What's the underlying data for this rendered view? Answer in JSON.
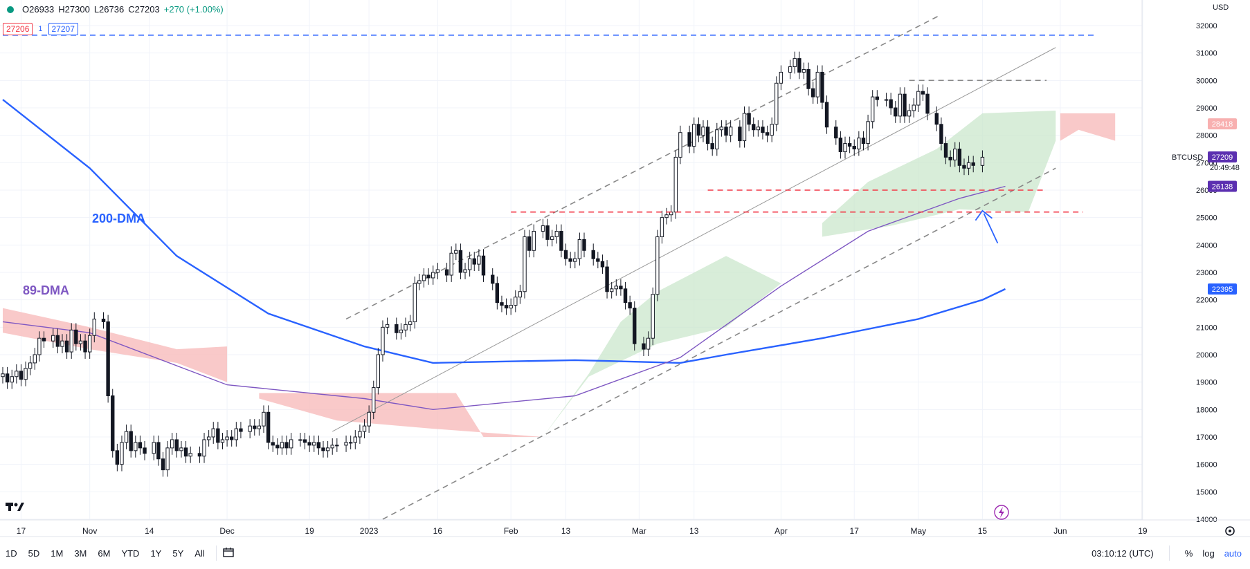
{
  "header": {
    "open": "O26933",
    "high": "H27300",
    "low": "L26736",
    "close": "C27203",
    "change": "+270 (+1.00%)",
    "sell_price": "27206",
    "spread": "1",
    "buy_price": "27207"
  },
  "axis": {
    "currency": "USD",
    "symbol": "BTCUSD",
    "last_price": "27203",
    "countdown": "20:49:48",
    "time_display": "03:10:12 (UTC)"
  },
  "bottom_bar": {
    "ranges": [
      "1D",
      "5D",
      "1M",
      "3M",
      "6M",
      "YTD",
      "1Y",
      "5Y",
      "All"
    ],
    "percent_label": "%",
    "log_label": "log",
    "auto_label": "auto"
  },
  "colors": {
    "up": "#131722",
    "down": "#131722",
    "dma200": "#2962ff",
    "dma89": "#7e57c2",
    "cloud_bull": "#c8e6c9",
    "cloud_bear": "#f8bbbb",
    "support": "#f23645",
    "resistance": "#2962ff",
    "channel": "#888888",
    "arrow": "#2962ff"
  },
  "chart_data": {
    "type": "candlestick",
    "title": "",
    "xlabel": "",
    "ylabel": "",
    "ylim": [
      14000,
      32000
    ],
    "grid": true,
    "x_tick_labels": [
      "17",
      "Nov",
      "14",
      "Dec",
      "19",
      "2023",
      "16",
      "Feb",
      "13",
      "Mar",
      "13",
      "Apr",
      "17",
      "May",
      "15",
      "Jun",
      "19"
    ],
    "y_tick_labels": [
      "32000",
      "31000",
      "30000",
      "29000",
      "28000",
      "27000",
      "26000",
      "25000",
      "24000",
      "23000",
      "22000",
      "21000",
      "20000",
      "19000",
      "18000",
      "17000",
      "16000",
      "15000",
      "14000"
    ],
    "x_start": "2022-10-13",
    "x_end": "2023-06-24",
    "candle_closes": [
      19300,
      19000,
      19200,
      19400,
      19100,
      19500,
      19700,
      20000,
      20600,
      20500,
      20700,
      20300,
      20500,
      20100,
      20900,
      20400,
      20500,
      20100,
      20700,
      21300,
      21200,
      18500,
      16500,
      16000,
      16800,
      17200,
      16500,
      16800,
      16600,
      16400,
      16800,
      16200,
      15800,
      16600,
      16900,
      16500,
      16600,
      16300,
      16400,
      16300,
      16900,
      17000,
      17300,
      16800,
      16900,
      17000,
      16900,
      17300,
      17200,
      17400,
      17300,
      17400,
      17900,
      16800,
      16700,
      16600,
      16800,
      16600,
      16900,
      16900,
      16800,
      16700,
      16800,
      16600,
      16500,
      16600,
      16700,
      16700,
      16800,
      16800,
      17000,
      17200,
      17400,
      17900,
      18800,
      20000,
      21000,
      21100,
      20800,
      20900,
      21100,
      21200,
      22600,
      22700,
      22900,
      22800,
      23000,
      23100,
      22900,
      23700,
      23800,
      23000,
      23100,
      23500,
      23300,
      23600,
      22900,
      22600,
      21900,
      21800,
      21700,
      21800,
      22100,
      22300,
      24300,
      23800,
      24500,
      24700,
      24200,
      24300,
      24500,
      23800,
      23500,
      23400,
      23500,
      24200,
      23800,
      23500,
      23400,
      23200,
      22300,
      22400,
      22500,
      22400,
      21900,
      21700,
      20400,
      20200,
      20600,
      22200,
      24300,
      25000,
      25100,
      25200,
      27200,
      28100,
      27600,
      28400,
      28000,
      28300,
      27700,
      27500,
      28200,
      28300,
      28000,
      28300,
      27800,
      28800,
      28400,
      28200,
      28300,
      28100,
      28000,
      28400,
      29900,
      30300,
      30500,
      30800,
      30300,
      30400,
      29700,
      29400,
      30300,
      29200,
      28300,
      27900,
      27400,
      27700,
      27600,
      27500,
      27900,
      27700,
      28500,
      29400,
      29300,
      29300,
      29000,
      28700,
      29500,
      28700,
      28900,
      29100,
      29600,
      29500,
      28800,
      28400,
      27700,
      27200,
      27100,
      27500,
      26900,
      26800,
      27000,
      26900,
      27200
    ],
    "dma200": [
      {
        "x": "2022-10-13",
        "y": 29300
      },
      {
        "x": "2022-11-01",
        "y": 26800
      },
      {
        "x": "2022-11-20",
        "y": 23600
      },
      {
        "x": "2022-12-10",
        "y": 21500
      },
      {
        "x": "2022-12-31",
        "y": 20300
      },
      {
        "x": "2023-01-15",
        "y": 19700
      },
      {
        "x": "2023-02-15",
        "y": 19800
      },
      {
        "x": "2023-03-10",
        "y": 19700
      },
      {
        "x": "2023-03-20",
        "y": 20000
      },
      {
        "x": "2023-04-10",
        "y": 20600
      },
      {
        "x": "2023-05-01",
        "y": 21300
      },
      {
        "x": "2023-05-15",
        "y": 22000
      },
      {
        "x": "2023-05-20",
        "y": 22395
      }
    ],
    "dma89": [
      {
        "x": "2022-10-13",
        "y": 21200
      },
      {
        "x": "2022-11-01",
        "y": 20800
      },
      {
        "x": "2022-12-01",
        "y": 18900
      },
      {
        "x": "2022-12-31",
        "y": 18400
      },
      {
        "x": "2023-01-15",
        "y": 18000
      },
      {
        "x": "2023-02-15",
        "y": 18500
      },
      {
        "x": "2023-03-10",
        "y": 19900
      },
      {
        "x": "2023-04-01",
        "y": 22500
      },
      {
        "x": "2023-04-20",
        "y": 24500
      },
      {
        "x": "2023-05-10",
        "y": 25700
      },
      {
        "x": "2023-05-20",
        "y": 26138
      }
    ],
    "channel_upper": [
      {
        "x": "2022-12-27",
        "y": 21300
      },
      {
        "x": "2023-05-06",
        "y": 32400
      }
    ],
    "channel_lower": [
      {
        "x": "2023-01-04",
        "y": 14000
      },
      {
        "x": "2023-05-31",
        "y": 26800
      }
    ],
    "channel_mid": [
      {
        "x": "2022-12-24",
        "y": 17200
      },
      {
        "x": "2023-05-31",
        "y": 31200
      }
    ],
    "resistance_line": [
      {
        "x": "2023-04-29",
        "y": 30000
      },
      {
        "x": "2023-05-29",
        "y": 30000
      }
    ],
    "support_lines": [
      {
        "y": 26000,
        "from": "2023-03-16",
        "to": "2023-05-29"
      },
      {
        "y": 25200,
        "from": "2023-02-01",
        "to": "2023-06-06"
      }
    ],
    "horizontal_line": {
      "y": 31650,
      "from": "2022-10-13",
      "to": "2023-06-09"
    },
    "annotations": [
      "200-DMA",
      "89-DMA"
    ],
    "price_tags": [
      {
        "value": "28418",
        "color": "#f8b0b0"
      },
      {
        "value": "27209",
        "color": "#5b2fb0"
      },
      {
        "value": "26138",
        "color": "#5b2fb0"
      },
      {
        "value": "22395",
        "color": "#2962ff"
      }
    ]
  }
}
